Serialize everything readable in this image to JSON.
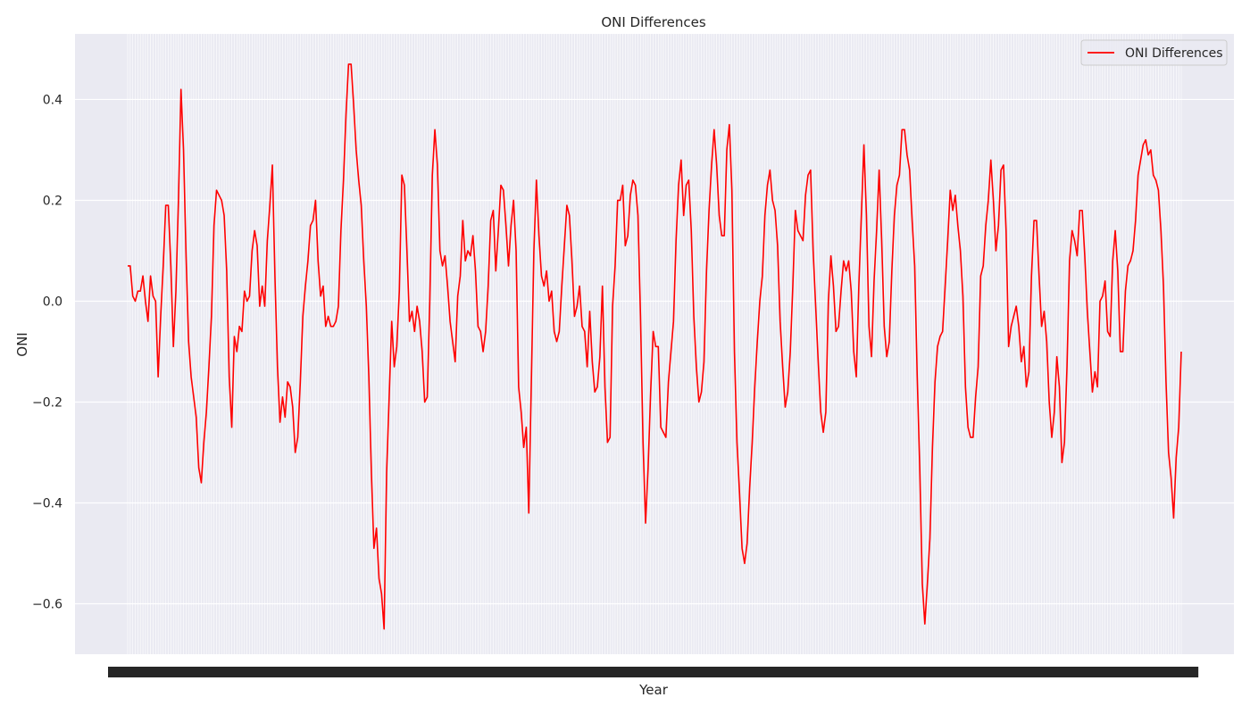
{
  "chart_data": {
    "type": "line",
    "title": "ONI Differences",
    "xlabel": "Year",
    "ylabel": "ONI",
    "ylim": [
      -0.7,
      0.53
    ],
    "yticks": [
      -0.6,
      -0.4,
      -0.2,
      0.0,
      0.2,
      0.4
    ],
    "ytick_labels": [
      "−0.6",
      "−0.4",
      "−0.2",
      "0.0",
      "0.2",
      "0.4"
    ],
    "grid": true,
    "legend_position": "top-right",
    "x_ticks_overlapping": true,
    "series": [
      {
        "name": "ONI Differences",
        "color": "#ff0000",
        "values": [
          0.07,
          0.07,
          0.01,
          0.0,
          0.02,
          0.02,
          0.05,
          0.0,
          -0.04,
          0.05,
          0.01,
          0.0,
          -0.15,
          -0.03,
          0.07,
          0.19,
          0.19,
          0.07,
          -0.09,
          0.02,
          0.2,
          0.42,
          0.3,
          0.09,
          -0.08,
          -0.15,
          -0.19,
          -0.23,
          -0.33,
          -0.36,
          -0.28,
          -0.22,
          -0.13,
          -0.03,
          0.15,
          0.22,
          0.21,
          0.2,
          0.17,
          0.06,
          -0.15,
          -0.25,
          -0.07,
          -0.1,
          -0.05,
          -0.06,
          0.02,
          0.0,
          0.01,
          0.1,
          0.14,
          0.11,
          -0.01,
          0.03,
          -0.01,
          0.12,
          0.19,
          0.27,
          0.05,
          -0.13,
          -0.24,
          -0.19,
          -0.23,
          -0.16,
          -0.17,
          -0.21,
          -0.3,
          -0.27,
          -0.16,
          -0.03,
          0.03,
          0.08,
          0.15,
          0.16,
          0.2,
          0.08,
          0.01,
          0.03,
          -0.05,
          -0.03,
          -0.05,
          -0.05,
          -0.04,
          -0.01,
          0.14,
          0.24,
          0.37,
          0.47,
          0.47,
          0.39,
          0.3,
          0.24,
          0.19,
          0.08,
          -0.01,
          -0.15,
          -0.34,
          -0.49,
          -0.45,
          -0.55,
          -0.58,
          -0.65,
          -0.34,
          -0.19,
          -0.04,
          -0.13,
          -0.09,
          0.02,
          0.25,
          0.23,
          0.1,
          -0.04,
          -0.02,
          -0.06,
          -0.01,
          -0.04,
          -0.1,
          -0.2,
          -0.19,
          0.0,
          0.25,
          0.34,
          0.27,
          0.1,
          0.07,
          0.09,
          0.03,
          -0.04,
          -0.08,
          -0.12,
          0.01,
          0.05,
          0.16,
          0.08,
          0.1,
          0.09,
          0.13,
          0.06,
          -0.05,
          -0.06,
          -0.1,
          -0.06,
          0.03,
          0.16,
          0.18,
          0.06,
          0.14,
          0.23,
          0.22,
          0.15,
          0.07,
          0.15,
          0.2,
          0.1,
          -0.17,
          -0.22,
          -0.29,
          -0.25,
          -0.42,
          -0.16,
          0.1,
          0.24,
          0.13,
          0.05,
          0.03,
          0.06,
          0.0,
          0.02,
          -0.06,
          -0.08,
          -0.06,
          0.03,
          0.11,
          0.19,
          0.17,
          0.08,
          -0.03,
          -0.01,
          0.03,
          -0.05,
          -0.06,
          -0.13,
          -0.02,
          -0.12,
          -0.18,
          -0.17,
          -0.11,
          0.03,
          -0.17,
          -0.28,
          -0.27,
          -0.01,
          0.07,
          0.2,
          0.2,
          0.23,
          0.11,
          0.13,
          0.21,
          0.24,
          0.23,
          0.17,
          -0.03,
          -0.28,
          -0.44,
          -0.33,
          -0.18,
          -0.06,
          -0.09,
          -0.09,
          -0.25,
          -0.26,
          -0.27,
          -0.16,
          -0.1,
          -0.04,
          0.12,
          0.23,
          0.28,
          0.17,
          0.23,
          0.24,
          0.14,
          -0.03,
          -0.13,
          -0.2,
          -0.18,
          -0.12,
          0.06,
          0.18,
          0.27,
          0.34,
          0.27,
          0.17,
          0.13,
          0.13,
          0.3,
          0.35,
          0.22,
          -0.1,
          -0.28,
          -0.38,
          -0.49,
          -0.52,
          -0.48,
          -0.37,
          -0.28,
          -0.17,
          -0.08,
          0.0,
          0.05,
          0.17,
          0.23,
          0.26,
          0.2,
          0.18,
          0.11,
          -0.04,
          -0.13,
          -0.21,
          -0.18,
          -0.1,
          0.03,
          0.18,
          0.14,
          0.13,
          0.12,
          0.21,
          0.25,
          0.26,
          0.1,
          -0.01,
          -0.12,
          -0.22,
          -0.26,
          -0.22,
          0.0,
          0.09,
          0.03,
          -0.06,
          -0.05,
          0.02,
          0.08,
          0.06,
          0.08,
          0.02,
          -0.1,
          -0.15,
          0.03,
          0.17,
          0.31,
          0.17,
          -0.05,
          -0.11,
          0.04,
          0.14,
          0.26,
          0.12,
          -0.05,
          -0.11,
          -0.08,
          0.06,
          0.17,
          0.23,
          0.25,
          0.34,
          0.34,
          0.29,
          0.26,
          0.16,
          0.07,
          -0.15,
          -0.33,
          -0.56,
          -0.64,
          -0.56,
          -0.47,
          -0.29,
          -0.16,
          -0.09,
          -0.07,
          -0.06,
          0.03,
          0.12,
          0.22,
          0.18,
          0.21,
          0.15,
          0.1,
          0.01,
          -0.17,
          -0.25,
          -0.27,
          -0.27,
          -0.19,
          -0.13,
          0.05,
          0.07,
          0.15,
          0.2,
          0.28,
          0.2,
          0.1,
          0.15,
          0.26,
          0.27,
          0.14,
          -0.09,
          -0.05,
          -0.03,
          -0.01,
          -0.05,
          -0.12,
          -0.09,
          -0.17,
          -0.14,
          0.05,
          0.16,
          0.16,
          0.05,
          -0.05,
          -0.02,
          -0.08,
          -0.2,
          -0.27,
          -0.22,
          -0.11,
          -0.17,
          -0.32,
          -0.28,
          -0.13,
          0.08,
          0.14,
          0.12,
          0.09,
          0.18,
          0.18,
          0.09,
          -0.02,
          -0.1,
          -0.18,
          -0.14,
          -0.17,
          0.0,
          0.01,
          0.04,
          -0.06,
          -0.07,
          0.08,
          0.14,
          0.06,
          -0.1,
          -0.1,
          0.02,
          0.07,
          0.08,
          0.1,
          0.16,
          0.25,
          0.28,
          0.31,
          0.32,
          0.29,
          0.3,
          0.25,
          0.24,
          0.22,
          0.14,
          0.03,
          -0.16,
          -0.3,
          -0.35,
          -0.43,
          -0.31,
          -0.25,
          -0.1
        ]
      }
    ]
  }
}
